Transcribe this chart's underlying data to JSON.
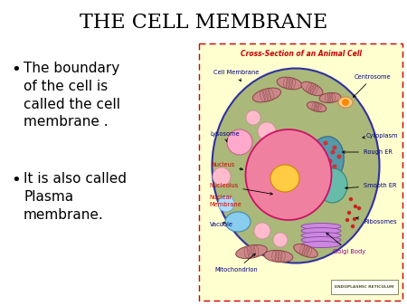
{
  "title": "THE CELL MEMBRANE",
  "title_fontsize": 16,
  "title_color": "#000000",
  "title_font": "serif",
  "background_color": "#ffffff",
  "bullet1_lines": [
    "The boundary",
    "of the cell is",
    "called the cell",
    "membrane ."
  ],
  "bullet2_lines": [
    "It is also called",
    "Plasma",
    "membrane."
  ],
  "bullet_fontsize": 11,
  "bullet_color": "#000000",
  "diagram_title": "Cross-Section of an Animal Cell",
  "diagram_title_color": "#cc0000",
  "diagram_bg": "#ffffd0",
  "diagram_border": "#cc0000",
  "cell_outer_color": "#aab87a",
  "cell_border_color": "#3030a0",
  "nucleus_outer_color": "#f080a0",
  "nucleus_border_color": "#cc1166",
  "nucleolus_color": "#ffcc44",
  "label_dark_blue": "#000080",
  "label_red": "#cc0000",
  "label_purple": "#880088"
}
